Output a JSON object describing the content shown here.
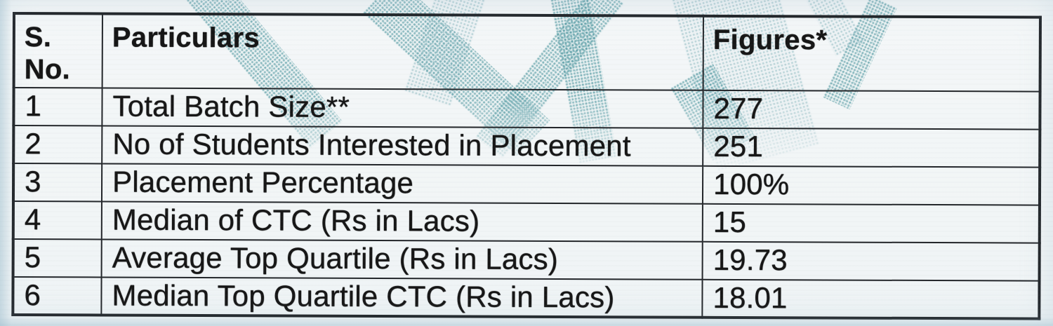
{
  "table": {
    "headers": [
      "S. No.",
      "Particulars",
      "Figures*"
    ],
    "rows": [
      [
        "1",
        "Total Batch Size**",
        "277"
      ],
      [
        "2",
        "No of Students Interested in Placement",
        "251"
      ],
      [
        "3",
        "Placement Percentage",
        "100%"
      ],
      [
        "4",
        "Median of CTC (Rs in Lacs)",
        "15"
      ],
      [
        "5",
        "Average Top Quartile (Rs in Lacs)",
        "19.73"
      ],
      [
        "6",
        "Median Top Quartile CTC (Rs in Lacs)",
        "18.01"
      ]
    ]
  },
  "colors": {
    "page_background": "#f2f5f6",
    "table_border": "#1e2125",
    "text": "#161616",
    "watermark_halftone": "#3a8a94"
  }
}
